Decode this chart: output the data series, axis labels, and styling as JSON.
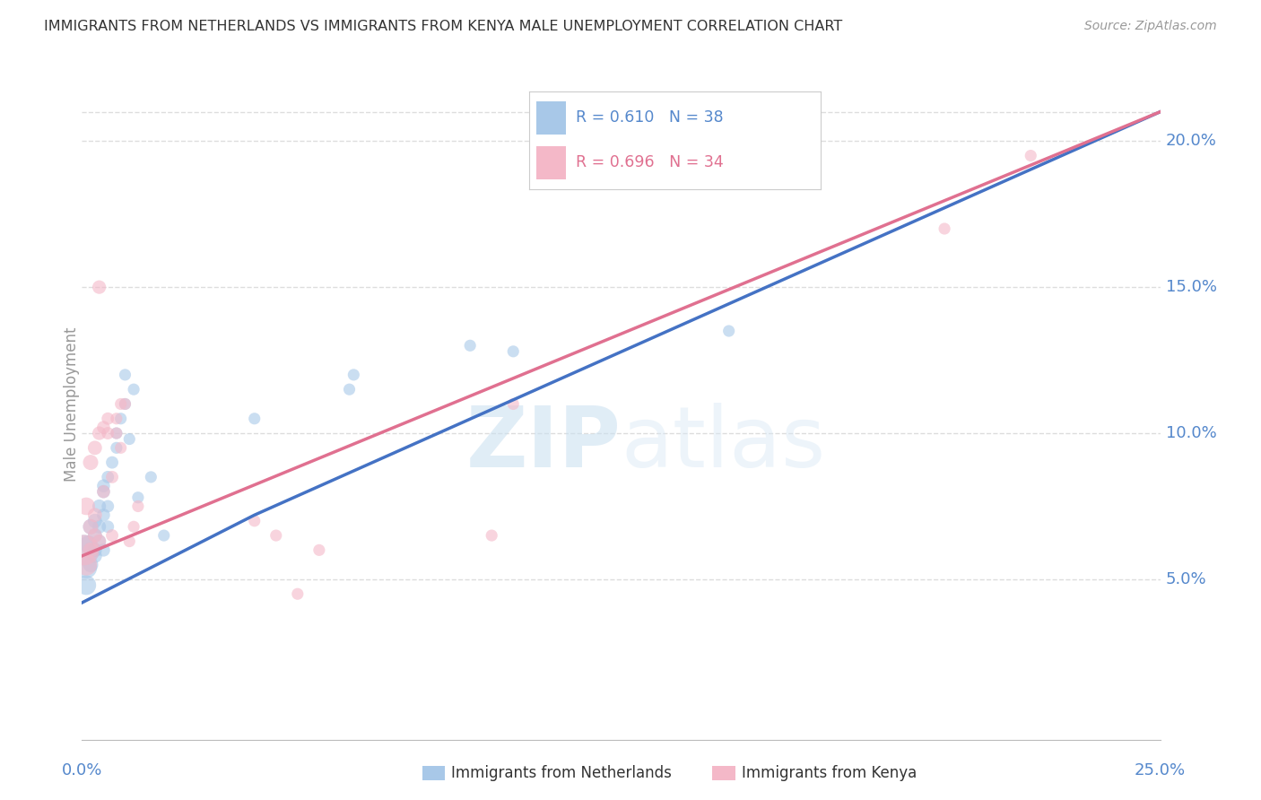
{
  "title": "IMMIGRANTS FROM NETHERLANDS VS IMMIGRANTS FROM KENYA MALE UNEMPLOYMENT CORRELATION CHART",
  "source": "Source: ZipAtlas.com",
  "ylabel": "Male Unemployment",
  "watermark_zip": "ZIP",
  "watermark_atlas": "atlas",
  "legend_blue_text": "R = 0.610   N = 38",
  "legend_pink_text": "R = 0.696   N = 34",
  "yticks": [
    0.05,
    0.1,
    0.15,
    0.2
  ],
  "ytick_labels": [
    "5.0%",
    "10.0%",
    "15.0%",
    "20.0%"
  ],
  "xlim": [
    0.0,
    0.25
  ],
  "ylim": [
    -0.005,
    0.225
  ],
  "blue_color": "#a8c8e8",
  "pink_color": "#f4b8c8",
  "blue_line_color": "#4472c4",
  "pink_line_color": "#e07090",
  "tick_label_color": "#5588cc",
  "title_color": "#333333",
  "grid_color": "#dddddd",
  "bottom_legend_netherlands": "Immigrants from Netherlands",
  "bottom_legend_kenya": "Immigrants from Kenya",
  "netherlands_x": [
    0.0005,
    0.001,
    0.001,
    0.0015,
    0.002,
    0.002,
    0.002,
    0.003,
    0.003,
    0.003,
    0.003,
    0.004,
    0.004,
    0.004,
    0.005,
    0.005,
    0.005,
    0.005,
    0.006,
    0.006,
    0.006,
    0.007,
    0.008,
    0.008,
    0.009,
    0.01,
    0.01,
    0.011,
    0.012,
    0.013,
    0.016,
    0.019,
    0.04,
    0.062,
    0.063,
    0.09,
    0.1,
    0.15
  ],
  "netherlands_y": [
    0.06,
    0.054,
    0.048,
    0.062,
    0.06,
    0.068,
    0.055,
    0.06,
    0.058,
    0.065,
    0.07,
    0.063,
    0.068,
    0.075,
    0.06,
    0.072,
    0.08,
    0.082,
    0.068,
    0.085,
    0.075,
    0.09,
    0.095,
    0.1,
    0.105,
    0.11,
    0.12,
    0.098,
    0.115,
    0.078,
    0.085,
    0.065,
    0.105,
    0.115,
    0.12,
    0.13,
    0.128,
    0.135
  ],
  "netherlands_sizes": [
    600,
    300,
    250,
    200,
    150,
    150,
    150,
    130,
    130,
    130,
    130,
    120,
    120,
    120,
    110,
    110,
    110,
    110,
    100,
    100,
    100,
    100,
    90,
    90,
    90,
    90,
    90,
    90,
    90,
    90,
    90,
    90,
    90,
    90,
    90,
    90,
    90,
    90
  ],
  "kenya_x": [
    0.0005,
    0.001,
    0.001,
    0.002,
    0.002,
    0.002,
    0.003,
    0.003,
    0.003,
    0.004,
    0.004,
    0.004,
    0.005,
    0.005,
    0.006,
    0.006,
    0.007,
    0.007,
    0.008,
    0.008,
    0.009,
    0.009,
    0.01,
    0.011,
    0.012,
    0.013,
    0.04,
    0.045,
    0.05,
    0.055,
    0.095,
    0.1,
    0.2,
    0.22
  ],
  "kenya_y": [
    0.06,
    0.055,
    0.075,
    0.06,
    0.068,
    0.09,
    0.065,
    0.072,
    0.095,
    0.063,
    0.1,
    0.15,
    0.102,
    0.08,
    0.1,
    0.105,
    0.065,
    0.085,
    0.1,
    0.105,
    0.11,
    0.095,
    0.11,
    0.063,
    0.068,
    0.075,
    0.07,
    0.065,
    0.045,
    0.06,
    0.065,
    0.11,
    0.17,
    0.195
  ],
  "kenya_sizes": [
    600,
    300,
    200,
    150,
    150,
    150,
    130,
    130,
    130,
    120,
    120,
    120,
    110,
    110,
    100,
    100,
    100,
    100,
    90,
    90,
    90,
    90,
    90,
    90,
    90,
    90,
    90,
    90,
    90,
    90,
    90,
    90,
    90,
    90
  ],
  "netherlands_line": [
    0.0,
    0.04,
    0.25
  ],
  "netherlands_line_y": [
    0.042,
    0.072,
    0.21
  ],
  "kenya_line": [
    0.0,
    0.25
  ],
  "kenya_line_y": [
    0.058,
    0.21
  ]
}
